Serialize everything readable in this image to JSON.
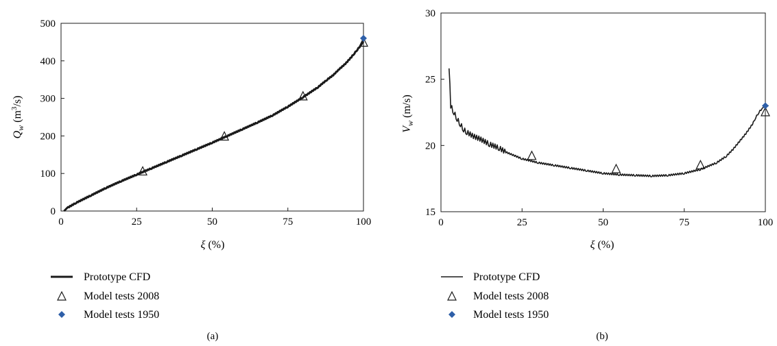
{
  "colors": {
    "line": "#1a1a1a",
    "marker_2008": "#1a1a1a",
    "marker_1950": "#2e5fa8"
  },
  "chart_data": [
    {
      "type": "line",
      "panel_label": "(a)",
      "xlabel_symbol": "ξ",
      "xlabel_unit": " (%)",
      "ylabel_symbol": "Q",
      "ylabel_sub": "w",
      "ylabel_unit_pre": " (m",
      "ylabel_unit_sup": "3",
      "ylabel_unit_post": "/s)",
      "xlim": [
        0,
        100
      ],
      "ylim": [
        0,
        500
      ],
      "xticks": [
        "0",
        "25",
        "50",
        "75",
        "100"
      ],
      "yticks": [
        "0",
        "100",
        "200",
        "300",
        "400",
        "500"
      ],
      "legend": [
        "Prototype CFD",
        "Model tests 2008",
        "Model tests 1950"
      ],
      "series": [
        {
          "name": "Prototype CFD",
          "x": [
            1,
            2,
            5,
            10,
            15,
            20,
            25,
            30,
            35,
            40,
            45,
            50,
            55,
            60,
            65,
            70,
            75,
            80,
            85,
            88,
            90,
            92,
            94,
            96,
            97,
            98,
            99,
            100
          ],
          "y": [
            0,
            8,
            22,
            42,
            62,
            80,
            97,
            114,
            131,
            148,
            165,
            182,
            200,
            218,
            236,
            255,
            278,
            303,
            330,
            350,
            362,
            378,
            392,
            410,
            420,
            430,
            440,
            452
          ]
        },
        {
          "name": "Model tests 2008",
          "x": [
            27,
            54,
            80,
            100
          ],
          "y": [
            105,
            198,
            305,
            448
          ]
        },
        {
          "name": "Model tests 1950",
          "x": [
            100
          ],
          "y": [
            460
          ]
        }
      ]
    },
    {
      "type": "line",
      "panel_label": "(b)",
      "xlabel_symbol": "ξ",
      "xlabel_unit": " (%)",
      "ylabel_symbol": "V",
      "ylabel_sub": "w",
      "ylabel_unit_pre": " (m/s)",
      "ylabel_unit_sup": "",
      "ylabel_unit_post": "",
      "xlim": [
        0,
        100
      ],
      "ylim": [
        15,
        30
      ],
      "xticks": [
        "0",
        "25",
        "50",
        "75",
        "100"
      ],
      "yticks": [
        "15",
        "20",
        "25",
        "30"
      ],
      "legend": [
        "Prototype CFD",
        "Model tests 2008",
        "Model tests 1950"
      ],
      "series": [
        {
          "name": "Prototype CFD",
          "x": [
            2.5,
            3,
            4,
            5,
            6,
            7,
            8,
            10,
            12,
            15,
            18,
            20,
            25,
            30,
            35,
            40,
            45,
            50,
            55,
            60,
            65,
            70,
            75,
            80,
            85,
            88,
            90,
            92,
            94,
            96,
            97,
            98,
            99,
            100,
            101
          ],
          "y": [
            26.0,
            23.0,
            22.5,
            22.0,
            21.6,
            21.2,
            21.0,
            20.7,
            20.5,
            20.1,
            19.8,
            19.5,
            19.0,
            18.7,
            18.5,
            18.3,
            18.1,
            17.9,
            17.8,
            17.75,
            17.7,
            17.75,
            17.9,
            18.2,
            18.7,
            19.2,
            19.7,
            20.3,
            20.9,
            21.6,
            22.1,
            22.5,
            22.8,
            23.0,
            23.0
          ]
        },
        {
          "name": "Model tests 2008",
          "x": [
            28,
            54,
            80,
            100
          ],
          "y": [
            19.2,
            18.2,
            18.5,
            22.5
          ]
        },
        {
          "name": "Model tests 1950",
          "x": [
            100
          ],
          "y": [
            23.0
          ]
        }
      ]
    }
  ]
}
